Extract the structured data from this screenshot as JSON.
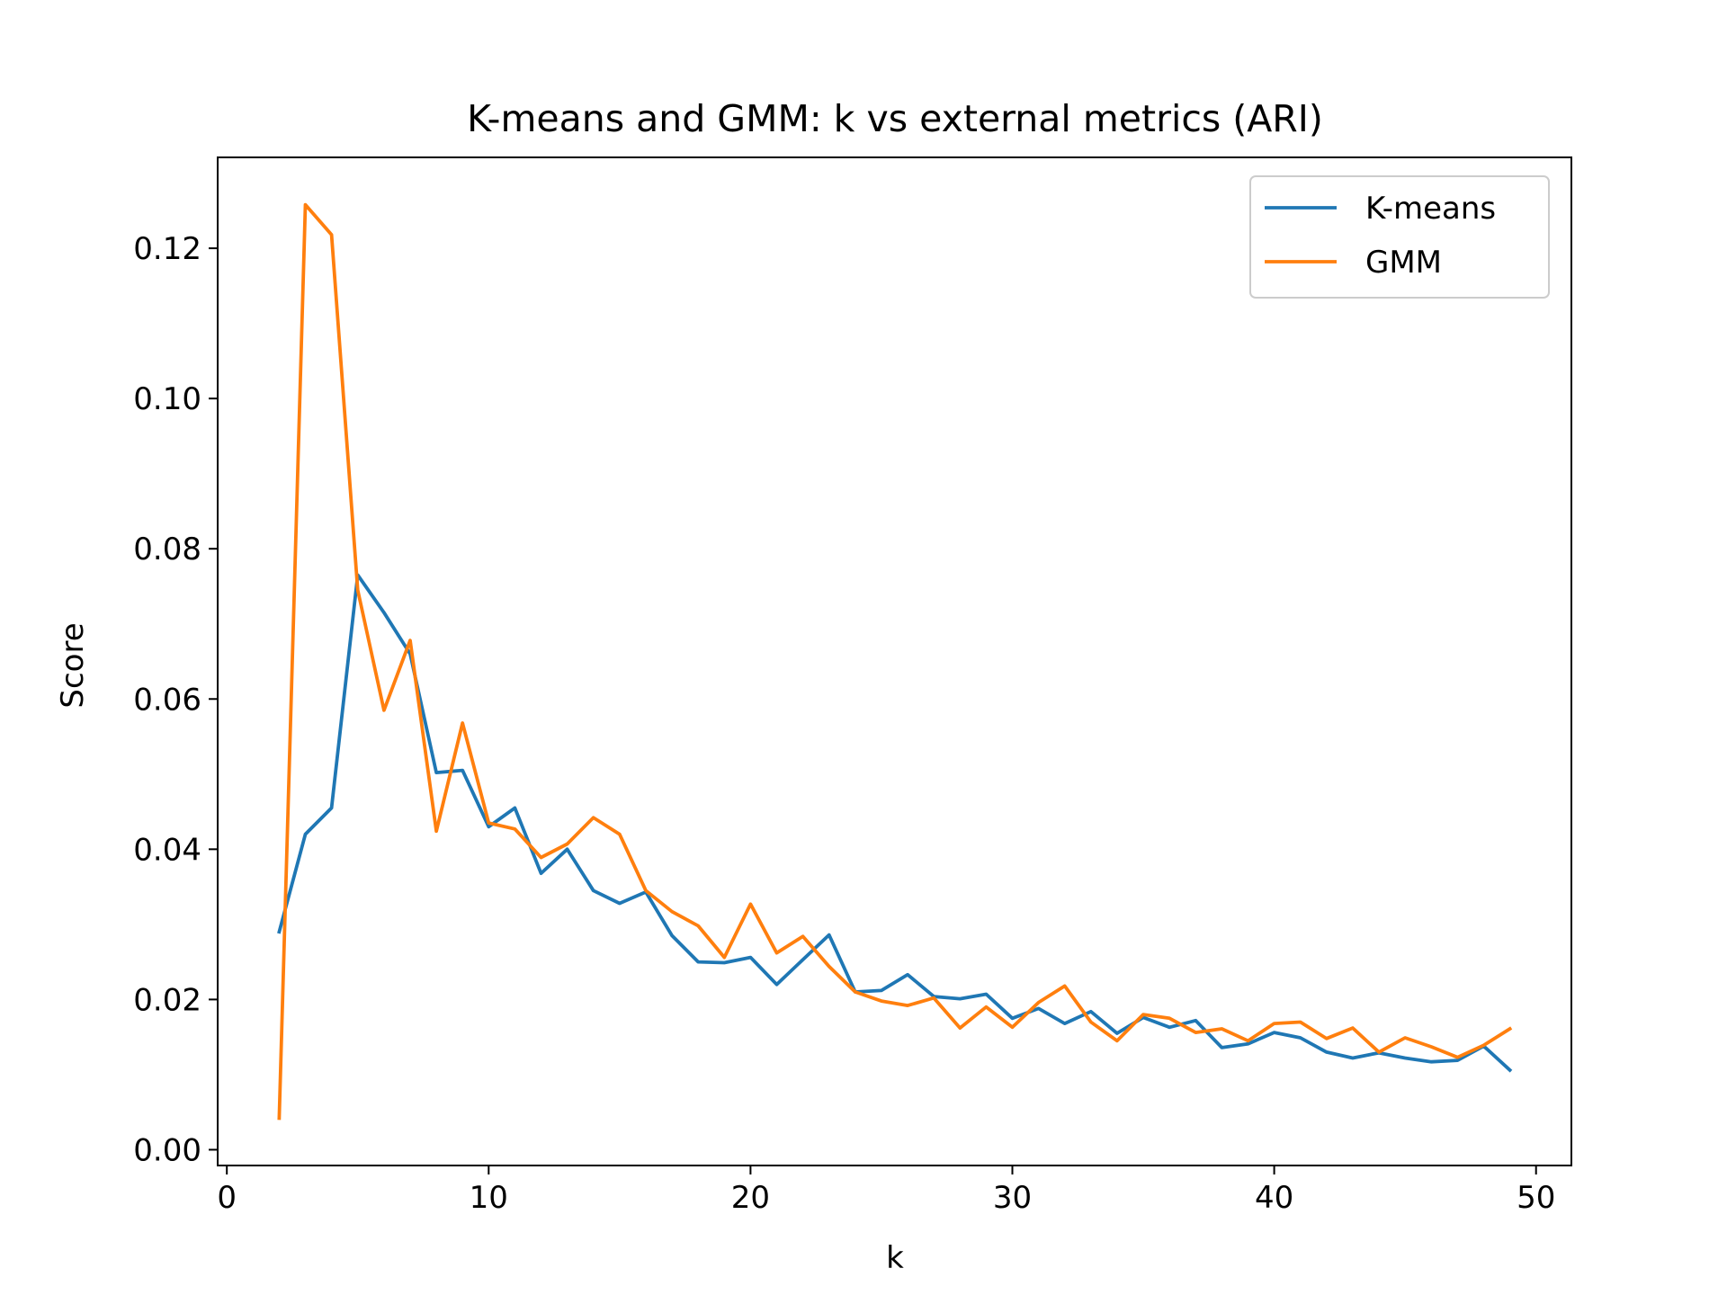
{
  "chart_data": {
    "type": "line",
    "title": "K-means and GMM: k vs external metrics (ARI)",
    "xlabel": "k",
    "ylabel": "Score",
    "xlim": [
      -0.35,
      51.35
    ],
    "ylim": [
      -0.0021,
      0.1321
    ],
    "xticks": [
      0,
      10,
      20,
      30,
      40,
      50
    ],
    "xtick_labels": [
      "0",
      "10",
      "20",
      "30",
      "40",
      "50"
    ],
    "yticks": [
      0.0,
      0.02,
      0.04,
      0.06,
      0.08,
      0.1,
      0.12
    ],
    "ytick_labels": [
      "0.00",
      "0.02",
      "0.04",
      "0.06",
      "0.08",
      "0.10",
      "0.12"
    ],
    "grid": false,
    "legend_position": "top-right",
    "x": [
      2,
      3,
      4,
      5,
      6,
      7,
      8,
      9,
      10,
      11,
      12,
      13,
      14,
      15,
      16,
      17,
      18,
      19,
      20,
      21,
      22,
      23,
      24,
      25,
      26,
      27,
      28,
      29,
      30,
      31,
      32,
      33,
      34,
      35,
      36,
      37,
      38,
      39,
      40,
      41,
      42,
      43,
      44,
      45,
      46,
      47,
      48,
      49
    ],
    "series": [
      {
        "name": "K-means",
        "color": "#1f77b4",
        "values": [
          0.029,
          0.042,
          0.0455,
          0.0765,
          0.0715,
          0.066,
          0.0502,
          0.0505,
          0.043,
          0.0455,
          0.0368,
          0.04,
          0.0345,
          0.0328,
          0.0343,
          0.0285,
          0.025,
          0.0249,
          0.0256,
          0.022,
          0.0253,
          0.0286,
          0.021,
          0.0212,
          0.0233,
          0.0204,
          0.0201,
          0.0207,
          0.0175,
          0.0188,
          0.0168,
          0.0184,
          0.0155,
          0.0176,
          0.0163,
          0.0172,
          0.0136,
          0.0141,
          0.0156,
          0.0149,
          0.013,
          0.0122,
          0.0129,
          0.0122,
          0.0117,
          0.0119,
          0.0138,
          0.0106
        ]
      },
      {
        "name": "GMM",
        "color": "#ff7f0e",
        "values": [
          0.0042,
          0.1258,
          0.1218,
          0.0745,
          0.0585,
          0.0678,
          0.0424,
          0.0568,
          0.0435,
          0.0427,
          0.0389,
          0.0407,
          0.0442,
          0.042,
          0.0345,
          0.0317,
          0.0298,
          0.0256,
          0.0327,
          0.0262,
          0.0284,
          0.0244,
          0.021,
          0.0198,
          0.0192,
          0.0202,
          0.0162,
          0.019,
          0.0163,
          0.0196,
          0.0218,
          0.017,
          0.0145,
          0.018,
          0.0175,
          0.0156,
          0.0161,
          0.0145,
          0.0168,
          0.017,
          0.0148,
          0.0162,
          0.013,
          0.0149,
          0.0137,
          0.0123,
          0.0139,
          0.0161
        ]
      }
    ]
  }
}
